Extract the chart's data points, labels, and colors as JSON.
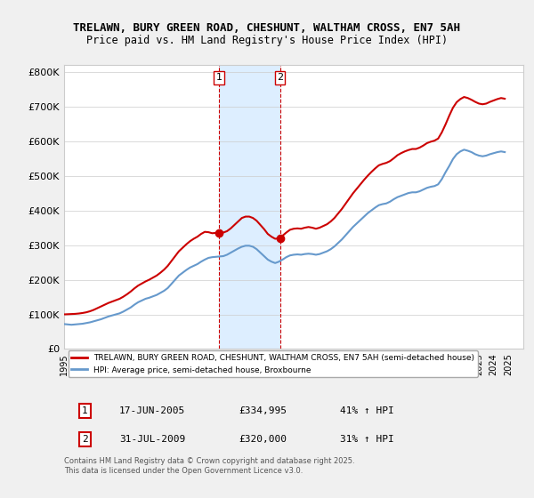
{
  "title_line1": "TRELAWN, BURY GREEN ROAD, CHESHUNT, WALTHAM CROSS, EN7 5AH",
  "title_line2": "Price paid vs. HM Land Registry's House Price Index (HPI)",
  "bg_color": "#f0f0f0",
  "plot_bg_color": "#ffffff",
  "red_color": "#cc0000",
  "blue_color": "#6699cc",
  "highlight_bg": "#ddeeff",
  "vline_color": "#cc0000",
  "grid_color": "#cccccc",
  "ylim": [
    0,
    820000
  ],
  "yticks": [
    0,
    100000,
    200000,
    300000,
    400000,
    500000,
    600000,
    700000,
    800000
  ],
  "ytick_labels": [
    "£0",
    "£100K",
    "£200K",
    "£300K",
    "£400K",
    "£500K",
    "£600K",
    "£700K",
    "£800K"
  ],
  "xmin": 1995.0,
  "xmax": 2026.0,
  "sale1_x": 2005.46,
  "sale1_y": 334995,
  "sale2_x": 2009.58,
  "sale2_y": 320000,
  "legend_line1": "TRELAWN, BURY GREEN ROAD, CHESHUNT, WALTHAM CROSS, EN7 5AH (semi-detached house)",
  "legend_line2": "HPI: Average price, semi-detached house, Broxbourne",
  "table_row1_num": "1",
  "table_row1_date": "17-JUN-2005",
  "table_row1_price": "£334,995",
  "table_row1_hpi": "41% ↑ HPI",
  "table_row2_num": "2",
  "table_row2_date": "31-JUL-2009",
  "table_row2_price": "£320,000",
  "table_row2_hpi": "31% ↑ HPI",
  "footer": "Contains HM Land Registry data © Crown copyright and database right 2025.\nThis data is licensed under the Open Government Licence v3.0.",
  "hpi_years": [
    1995.0,
    1995.25,
    1995.5,
    1995.75,
    1996.0,
    1996.25,
    1996.5,
    1996.75,
    1997.0,
    1997.25,
    1997.5,
    1997.75,
    1998.0,
    1998.25,
    1998.5,
    1998.75,
    1999.0,
    1999.25,
    1999.5,
    1999.75,
    2000.0,
    2000.25,
    2000.5,
    2000.75,
    2001.0,
    2001.25,
    2001.5,
    2001.75,
    2002.0,
    2002.25,
    2002.5,
    2002.75,
    2003.0,
    2003.25,
    2003.5,
    2003.75,
    2004.0,
    2004.25,
    2004.5,
    2004.75,
    2005.0,
    2005.25,
    2005.5,
    2005.75,
    2006.0,
    2006.25,
    2006.5,
    2006.75,
    2007.0,
    2007.25,
    2007.5,
    2007.75,
    2008.0,
    2008.25,
    2008.5,
    2008.75,
    2009.0,
    2009.25,
    2009.5,
    2009.75,
    2010.0,
    2010.25,
    2010.5,
    2010.75,
    2011.0,
    2011.25,
    2011.5,
    2011.75,
    2012.0,
    2012.25,
    2012.5,
    2012.75,
    2013.0,
    2013.25,
    2013.5,
    2013.75,
    2014.0,
    2014.25,
    2014.5,
    2014.75,
    2015.0,
    2015.25,
    2015.5,
    2015.75,
    2016.0,
    2016.25,
    2016.5,
    2016.75,
    2017.0,
    2017.25,
    2017.5,
    2017.75,
    2018.0,
    2018.25,
    2018.5,
    2018.75,
    2019.0,
    2019.25,
    2019.5,
    2019.75,
    2020.0,
    2020.25,
    2020.5,
    2020.75,
    2021.0,
    2021.25,
    2021.5,
    2021.75,
    2022.0,
    2022.25,
    2022.5,
    2022.75,
    2023.0,
    2023.25,
    2023.5,
    2023.75,
    2024.0,
    2024.25,
    2024.5,
    2024.75
  ],
  "hpi_values": [
    72000,
    71000,
    70000,
    71000,
    72000,
    73000,
    75000,
    77000,
    80000,
    83000,
    86000,
    90000,
    94000,
    97000,
    100000,
    103000,
    108000,
    114000,
    120000,
    128000,
    135000,
    140000,
    145000,
    148000,
    152000,
    156000,
    162000,
    168000,
    176000,
    188000,
    200000,
    212000,
    220000,
    228000,
    235000,
    240000,
    245000,
    252000,
    258000,
    263000,
    265000,
    266000,
    267000,
    268000,
    272000,
    278000,
    284000,
    290000,
    295000,
    298000,
    298000,
    295000,
    288000,
    278000,
    268000,
    258000,
    252000,
    248000,
    252000,
    258000,
    265000,
    270000,
    272000,
    273000,
    272000,
    274000,
    275000,
    274000,
    272000,
    274000,
    278000,
    282000,
    288000,
    296000,
    306000,
    316000,
    328000,
    340000,
    352000,
    362000,
    372000,
    382000,
    392000,
    400000,
    408000,
    415000,
    418000,
    420000,
    425000,
    432000,
    438000,
    442000,
    446000,
    450000,
    452000,
    452000,
    455000,
    460000,
    465000,
    468000,
    470000,
    475000,
    490000,
    510000,
    528000,
    548000,
    562000,
    570000,
    575000,
    572000,
    568000,
    562000,
    558000,
    556000,
    558000,
    562000,
    565000,
    568000,
    570000,
    568000
  ],
  "red_years": [
    1995.0,
    1995.25,
    1995.5,
    1995.75,
    1996.0,
    1996.25,
    1996.5,
    1996.75,
    1997.0,
    1997.25,
    1997.5,
    1997.75,
    1998.0,
    1998.25,
    1998.5,
    1998.75,
    1999.0,
    1999.25,
    1999.5,
    1999.75,
    2000.0,
    2000.25,
    2000.5,
    2000.75,
    2001.0,
    2001.25,
    2001.5,
    2001.75,
    2002.0,
    2002.25,
    2002.5,
    2002.75,
    2003.0,
    2003.25,
    2003.5,
    2003.75,
    2004.0,
    2004.25,
    2004.5,
    2004.75,
    2005.0,
    2005.25,
    2005.46,
    2005.75,
    2006.0,
    2006.25,
    2006.5,
    2006.75,
    2007.0,
    2007.25,
    2007.5,
    2007.75,
    2008.0,
    2008.25,
    2008.5,
    2008.75,
    2009.0,
    2009.25,
    2009.58,
    2009.75,
    2010.0,
    2010.25,
    2010.5,
    2010.75,
    2011.0,
    2011.25,
    2011.5,
    2011.75,
    2012.0,
    2012.25,
    2012.5,
    2012.75,
    2013.0,
    2013.25,
    2013.5,
    2013.75,
    2014.0,
    2014.25,
    2014.5,
    2014.75,
    2015.0,
    2015.25,
    2015.5,
    2015.75,
    2016.0,
    2016.25,
    2016.5,
    2016.75,
    2017.0,
    2017.25,
    2017.5,
    2017.75,
    2018.0,
    2018.25,
    2018.5,
    2018.75,
    2019.0,
    2019.25,
    2019.5,
    2019.75,
    2020.0,
    2020.25,
    2020.5,
    2020.75,
    2021.0,
    2021.25,
    2021.5,
    2021.75,
    2022.0,
    2022.25,
    2022.5,
    2022.75,
    2023.0,
    2023.25,
    2023.5,
    2023.75,
    2024.0,
    2024.25,
    2024.5,
    2024.75
  ],
  "red_values": [
    100000,
    100500,
    101000,
    101500,
    102500,
    104000,
    106000,
    109000,
    113000,
    118000,
    123000,
    128000,
    133000,
    137000,
    141000,
    145000,
    151000,
    158000,
    166000,
    175000,
    183000,
    189000,
    195000,
    200000,
    206000,
    212000,
    220000,
    229000,
    240000,
    254000,
    268000,
    282000,
    292000,
    302000,
    311000,
    318000,
    324000,
    332000,
    338000,
    337000,
    334000,
    335000,
    334995,
    336000,
    340000,
    348000,
    358000,
    368000,
    378000,
    382000,
    382000,
    378000,
    370000,
    358000,
    346000,
    332000,
    324000,
    318000,
    320000,
    327000,
    336000,
    344000,
    347000,
    348000,
    347000,
    350000,
    352000,
    350000,
    347000,
    350000,
    355000,
    360000,
    368000,
    378000,
    391000,
    404000,
    419000,
    434000,
    449000,
    462000,
    475000,
    488000,
    500000,
    511000,
    521000,
    530000,
    534000,
    537000,
    542000,
    550000,
    559000,
    565000,
    570000,
    574000,
    577000,
    577000,
    581000,
    587000,
    594000,
    598000,
    601000,
    607000,
    625000,
    648000,
    673000,
    696000,
    712000,
    721000,
    727000,
    724000,
    719000,
    713000,
    708000,
    706000,
    708000,
    713000,
    717000,
    721000,
    724000,
    722000
  ]
}
